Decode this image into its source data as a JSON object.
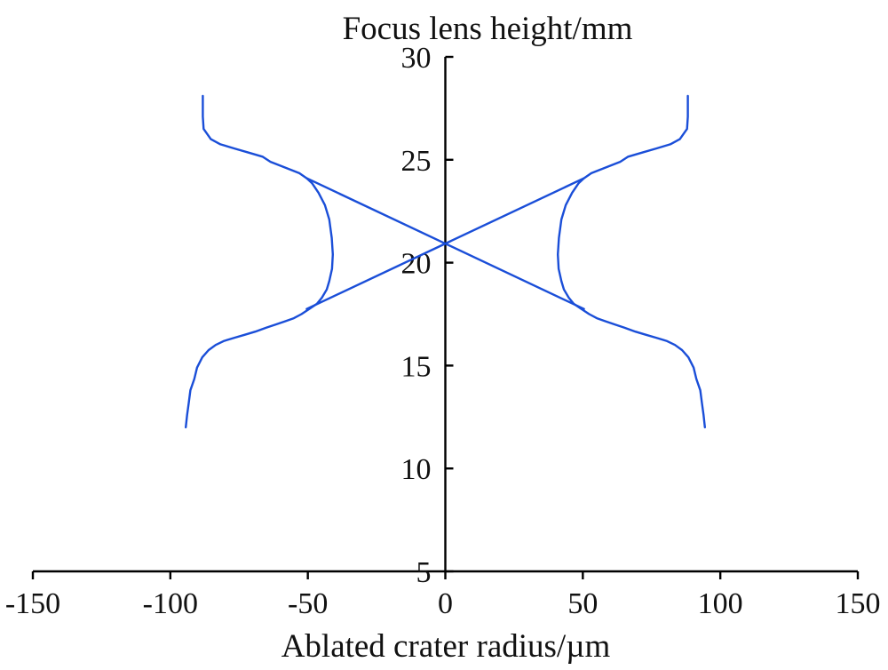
{
  "chart_data": {
    "type": "line",
    "title": "Focus lens height/mm",
    "xlabel": "Ablated crater radius/µm",
    "ylabel": "",
    "xlim": [
      -150,
      150
    ],
    "ylim": [
      5,
      30
    ],
    "xticks": [
      "-150",
      "-100",
      "-50",
      "0",
      "50",
      "100",
      "150"
    ],
    "yticks": [
      "5",
      "10",
      "15",
      "20",
      "25",
      "30"
    ],
    "grid": false,
    "legend": "none",
    "colors": {
      "line": "#1a4ed8",
      "axis": "#000000"
    },
    "series": [
      {
        "points": [
          [
            -88.2,
            28.1
          ],
          [
            -88.2,
            27.1
          ],
          [
            -87.9,
            26.5
          ],
          [
            -85.3,
            26.0
          ],
          [
            -81.8,
            25.75
          ],
          [
            -76.7,
            25.55
          ],
          [
            -71.6,
            25.35
          ],
          [
            -66.5,
            25.15
          ],
          [
            -63.6,
            24.9
          ],
          [
            -61.7,
            24.8
          ],
          [
            -57.8,
            24.6
          ],
          [
            -53.1,
            24.35
          ],
          [
            -50.4,
            24.1
          ],
          [
            -48.4,
            23.85
          ],
          [
            -46.1,
            23.4
          ],
          [
            -43.8,
            22.8
          ],
          [
            -42.2,
            22.1
          ],
          [
            -41.3,
            21.2
          ],
          [
            -40.9,
            20.4
          ],
          [
            -41.2,
            19.7
          ],
          [
            -42.2,
            19.1
          ],
          [
            -43.1,
            18.7
          ],
          [
            -44.9,
            18.3
          ],
          [
            -46.7,
            18.0
          ],
          [
            -49.5,
            17.75
          ],
          [
            -52.3,
            17.5
          ],
          [
            -55.1,
            17.3
          ],
          [
            -58.3,
            17.15
          ],
          [
            -61.6,
            17.0
          ],
          [
            -65.0,
            16.85
          ],
          [
            -69.1,
            16.65
          ],
          [
            -72.9,
            16.5
          ],
          [
            -76.7,
            16.35
          ],
          [
            -80.4,
            16.2
          ],
          [
            -83.5,
            16.0
          ],
          [
            -86.1,
            15.75
          ],
          [
            -88.4,
            15.4
          ],
          [
            -90.3,
            14.9
          ],
          [
            -91.3,
            14.35
          ],
          [
            -92.7,
            13.8
          ],
          [
            -93.3,
            13.2
          ],
          [
            -93.9,
            12.6
          ],
          [
            -94.4,
            12.0
          ]
        ]
      },
      {
        "points": [
          [
            88.2,
            28.1
          ],
          [
            88.2,
            27.1
          ],
          [
            87.9,
            26.5
          ],
          [
            85.3,
            26.0
          ],
          [
            81.8,
            25.75
          ],
          [
            76.7,
            25.55
          ],
          [
            71.6,
            25.35
          ],
          [
            66.5,
            25.15
          ],
          [
            63.6,
            24.9
          ],
          [
            61.7,
            24.8
          ],
          [
            57.8,
            24.6
          ],
          [
            53.1,
            24.35
          ],
          [
            50.4,
            24.1
          ],
          [
            48.4,
            23.85
          ],
          [
            46.1,
            23.4
          ],
          [
            43.8,
            22.8
          ],
          [
            42.2,
            22.1
          ],
          [
            41.3,
            21.2
          ],
          [
            40.9,
            20.4
          ],
          [
            41.2,
            19.7
          ],
          [
            42.2,
            19.1
          ],
          [
            43.1,
            18.7
          ],
          [
            44.9,
            18.3
          ],
          [
            46.7,
            18.0
          ],
          [
            49.5,
            17.75
          ],
          [
            52.3,
            17.5
          ],
          [
            55.1,
            17.3
          ],
          [
            58.3,
            17.15
          ],
          [
            61.6,
            17.0
          ],
          [
            65.0,
            16.85
          ],
          [
            69.1,
            16.65
          ],
          [
            72.9,
            16.5
          ],
          [
            76.7,
            16.35
          ],
          [
            80.4,
            16.2
          ],
          [
            83.5,
            16.0
          ],
          [
            86.1,
            15.75
          ],
          [
            88.4,
            15.4
          ],
          [
            90.3,
            14.9
          ],
          [
            91.3,
            14.35
          ],
          [
            92.7,
            13.8
          ],
          [
            93.3,
            13.2
          ],
          [
            93.9,
            12.6
          ],
          [
            94.4,
            12.0
          ]
        ]
      },
      {
        "points": [
          [
            -50.4,
            24.1
          ],
          [
            50.4,
            17.75
          ]
        ]
      },
      {
        "points": [
          [
            50.4,
            24.1
          ],
          [
            -50.4,
            17.75
          ]
        ]
      }
    ]
  }
}
